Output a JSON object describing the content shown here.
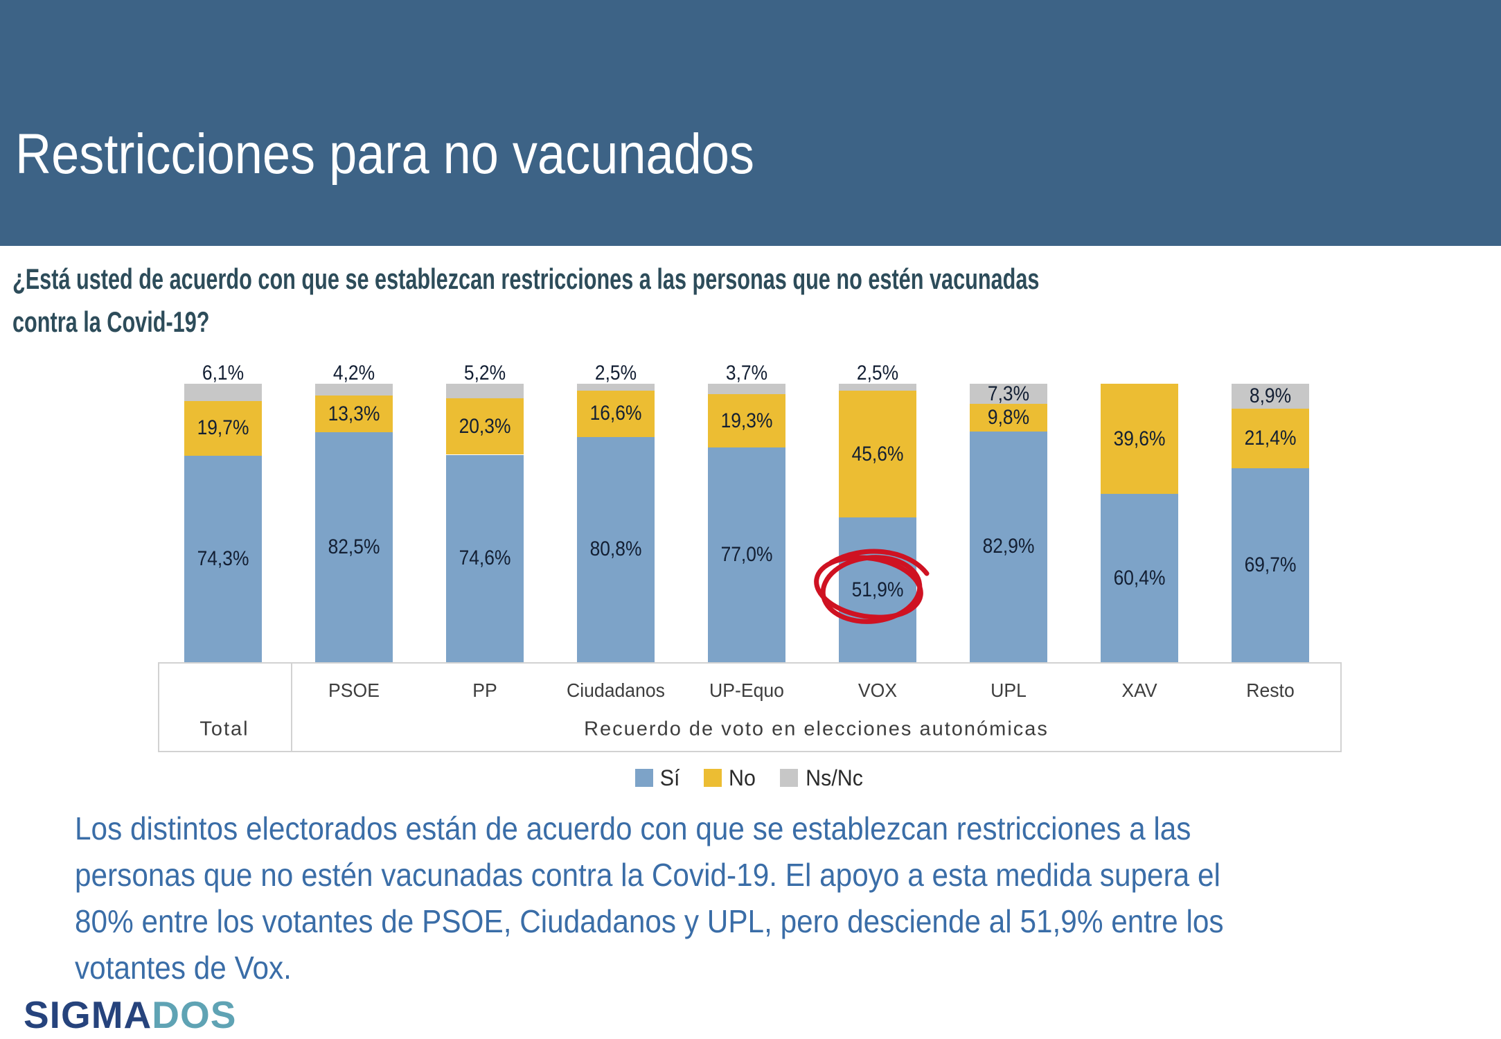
{
  "header": {
    "title": "Restricciones para no vacunados",
    "band_color": "#3d6386"
  },
  "question": {
    "line1": "¿Está usted de acuerdo con que se establezcan restricciones a las personas que no estén vacunadas",
    "line2": "contra la Covid-19?"
  },
  "chart_data": {
    "type": "bar",
    "stacked": true,
    "unit": "%",
    "ylim": [
      0,
      100
    ],
    "grid": false,
    "y_axis_visible": false,
    "legend_position": "bottom",
    "categories": [
      "Total",
      "PSOE",
      "PP",
      "Ciudadanos",
      "UP-Equo",
      "VOX",
      "UPL",
      "XAV",
      "Resto"
    ],
    "series": [
      {
        "name": "Sí",
        "color": "#7da3c8",
        "values": [
          74.3,
          82.5,
          74.6,
          80.8,
          77.0,
          51.9,
          82.9,
          60.4,
          69.7
        ]
      },
      {
        "name": "No",
        "color": "#ecbd33",
        "values": [
          19.7,
          13.3,
          20.3,
          16.6,
          19.3,
          45.6,
          9.8,
          39.6,
          21.4
        ]
      },
      {
        "name": "Ns/Nc",
        "color": "#c7c7c7",
        "values": [
          6.1,
          4.2,
          5.2,
          2.5,
          3.7,
          2.5,
          7.3,
          0,
          8.9
        ]
      }
    ],
    "data_labels": {
      "Total": {
        "Sí": "74,3%",
        "No": "19,7%",
        "Ns/Nc": "6,1%"
      },
      "PSOE": {
        "Sí": "82,5%",
        "No": "13,3%",
        "Ns/Nc": "4,2%"
      },
      "PP": {
        "Sí": "74,6%",
        "No": "20,3%",
        "Ns/Nc": "5,2%"
      },
      "Ciudadanos": {
        "Sí": "80,8%",
        "No": "16,6%",
        "Ns/Nc": "2,5%"
      },
      "UP-Equo": {
        "Sí": "77,0%",
        "No": "19,3%",
        "Ns/Nc": "3,7%"
      },
      "VOX": {
        "Sí": "51,9%",
        "No": "45,6%",
        "Ns/Nc": "2,5%"
      },
      "UPL": {
        "Sí": "82,9%",
        "No": "9,8%",
        "Ns/Nc": "7,3%"
      },
      "XAV": {
        "Sí": "60,4%",
        "No": "39,6%"
      },
      "Resto": {
        "Sí": "69,7%",
        "No": "21,4%",
        "Ns/Nc": "8,9%"
      }
    },
    "x_axis": {
      "left_cell": "Total",
      "right_cell": "Recuerdo  de voto  en elecciones  autonómicas"
    },
    "annotation": {
      "type": "hand-drawn-circle",
      "category": "VOX",
      "series": "Sí",
      "circled_value": "51,9%",
      "color": "#cf1222"
    }
  },
  "footer": {
    "paragraph_lines": [
      "Los distintos electorados están de acuerdo con que se establezcan restricciones a las",
      "personas que no estén vacunadas contra la Covid-19. El apoyo a esta medida supera el",
      "80% entre los votantes de PSOE, Ciudadanos y UPL, pero desciende al 51,9% entre los",
      "votantes de Vox."
    ],
    "text_color": "#3a6da7"
  },
  "logo": {
    "part1": "SIGMA",
    "part2": "DOS",
    "color1": "#26437c",
    "color2": "#5fa3b4"
  }
}
